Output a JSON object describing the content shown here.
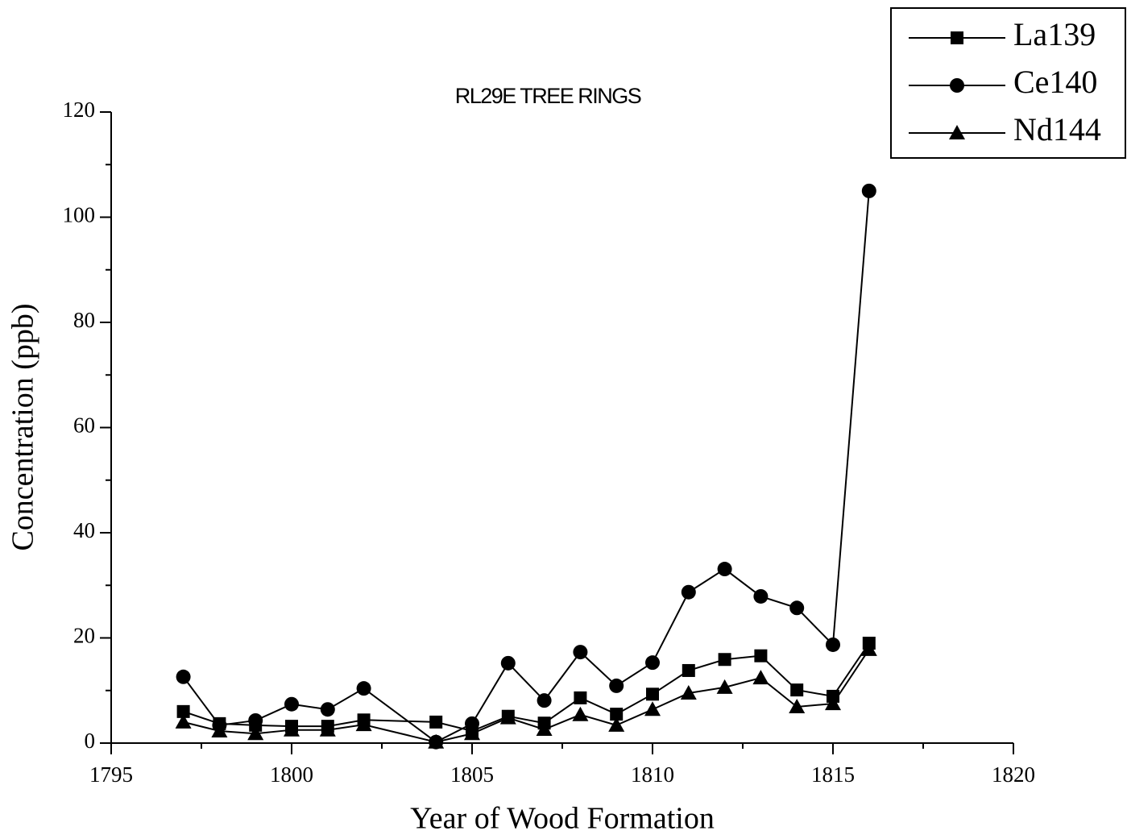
{
  "chart_data": {
    "type": "line",
    "title": "RL29E TREE RINGS",
    "x_label": "Year of Wood Formation",
    "y_label": "Concentration (ppb)",
    "x": [
      1797,
      1798,
      1799,
      1800,
      1801,
      1802,
      1804,
      1805,
      1806,
      1807,
      1808,
      1809,
      1810,
      1811,
      1812,
      1813,
      1814,
      1815,
      1816
    ],
    "series": [
      {
        "name": "La139",
        "color": "#000000",
        "marker": "square",
        "values": [
          6.0,
          3.7,
          3.4,
          3.2,
          3.2,
          4.4,
          4.0,
          2.3,
          5.1,
          3.8,
          8.6,
          5.5,
          9.3,
          13.8,
          15.9,
          16.6,
          10.1,
          8.9,
          19.0
        ]
      },
      {
        "name": "Ce140",
        "color": "#000000",
        "marker": "circle",
        "values": [
          12.6,
          3.4,
          4.3,
          7.4,
          6.4,
          10.4,
          0.2,
          3.7,
          15.2,
          8.1,
          17.3,
          10.9,
          15.3,
          28.7,
          33.1,
          27.9,
          25.7,
          18.7,
          105
        ]
      },
      {
        "name": "Nd144",
        "color": "#000000",
        "marker": "triangle",
        "values": [
          4.0,
          2.3,
          1.8,
          2.5,
          2.5,
          3.5,
          0.2,
          1.8,
          4.8,
          2.6,
          5.4,
          3.4,
          6.4,
          9.5,
          10.6,
          12.4,
          6.9,
          7.5,
          17.8
        ]
      }
    ],
    "xlim": [
      1795,
      1820
    ],
    "xticks": [
      1795,
      1800,
      1805,
      1810,
      1815,
      1820
    ],
    "xminorticks": [
      1797.5,
      1802.5,
      1807.5,
      1812.5,
      1817.5
    ],
    "ylim": [
      0,
      120
    ],
    "yticks": [
      0,
      20,
      40,
      60,
      80,
      100,
      120
    ],
    "yminorticks": [
      10,
      30,
      50,
      70,
      90,
      110
    ],
    "legend": "upper right",
    "grid": false
  }
}
